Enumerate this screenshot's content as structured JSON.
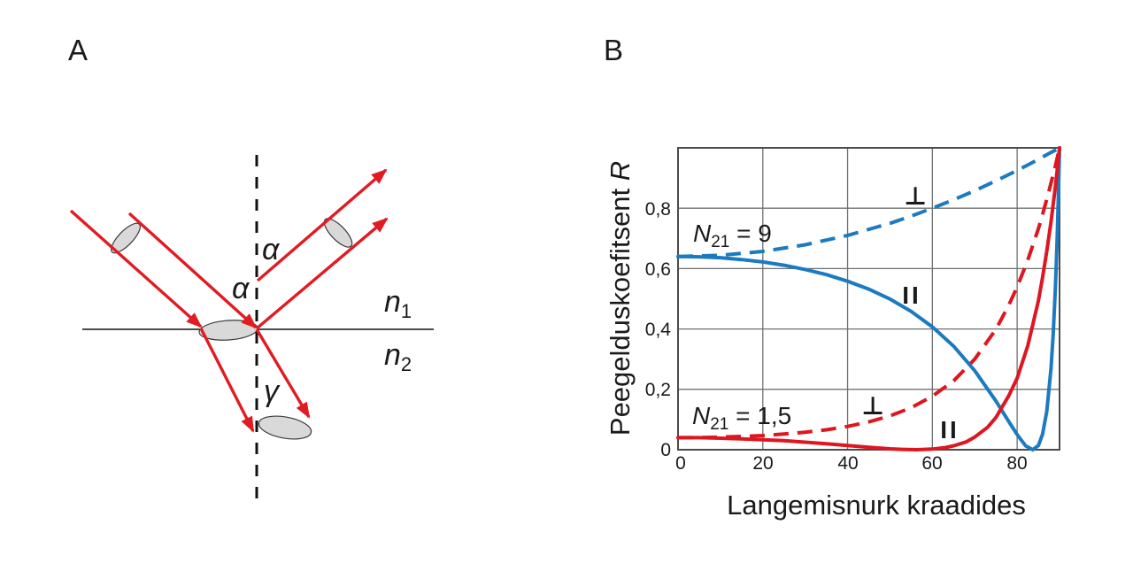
{
  "figure": {
    "background": "#ffffff",
    "ray_color": "#e11b22",
    "line_color": "#111111",
    "ellipse_fill": "#d9d9d9",
    "ellipse_stroke": "#3a3a3a",
    "grid_color": "#707070",
    "frame_color": "#4b4b4b"
  },
  "panel_a": {
    "label": "A",
    "angle_incidence": "α",
    "angle_reflection": "α",
    "angle_refraction": "γ",
    "medium1": {
      "base": "n",
      "sub": "1"
    },
    "medium2": {
      "base": "n",
      "sub": "2"
    }
  },
  "panel_b": {
    "label": "B",
    "annotation_n9": {
      "base": "N",
      "sub": "21",
      "rest": " = 9"
    },
    "annotation_n15": {
      "base": "N",
      "sub": "21",
      "rest": " = 1,5"
    },
    "perp_blue": "⊥",
    "par_blue": "II",
    "perp_red": "⊥",
    "par_red": "II"
  },
  "chart_data": {
    "type": "line",
    "title": "",
    "xlabel": "Langemisnurk kraadides",
    "ylabel": "Peegelduskoefitsent R",
    "ylabel_main": "Peegelduskoefitsent ",
    "ylabel_var": "R",
    "xlim": [
      0,
      90
    ],
    "ylim": [
      0,
      1
    ],
    "grid": true,
    "legend_position": "inline-annotations",
    "x_tick_labels": [
      "0",
      "20",
      "40",
      "60",
      "80"
    ],
    "y_tick_labels": [
      "0",
      "0,2",
      "0,4",
      "0,6",
      "0,8"
    ],
    "x_ticks": [
      0,
      20,
      40,
      60,
      80
    ],
    "y_ticks": [
      0,
      0.2,
      0.4,
      0.6,
      0.8
    ],
    "x_gridlines": [
      20,
      40,
      60,
      80
    ],
    "y_gridlines": [
      0.2,
      0.4,
      0.6,
      0.8
    ],
    "series": [
      {
        "id": "n9-perp",
        "name": "N21 = 9, perpendicular polarization (⊥)",
        "color": "#1b7ac0",
        "dashed": true,
        "points": [
          [
            0,
            0.64
          ],
          [
            10,
            0.644
          ],
          [
            20,
            0.657
          ],
          [
            30,
            0.679
          ],
          [
            40,
            0.71
          ],
          [
            50,
            0.75
          ],
          [
            55,
            0.774
          ],
          [
            60,
            0.8
          ],
          [
            65,
            0.828
          ],
          [
            70,
            0.858
          ],
          [
            75,
            0.891
          ],
          [
            80,
            0.925
          ],
          [
            83,
            0.947
          ],
          [
            85,
            0.962
          ],
          [
            87,
            0.977
          ],
          [
            88,
            0.985
          ],
          [
            89,
            0.992
          ],
          [
            90,
            1.0
          ]
        ]
      },
      {
        "id": "n9-par",
        "name": "N21 = 9, parallel polarization (∥)",
        "color": "#1b7ac0",
        "dashed": false,
        "points": [
          [
            0,
            0.64
          ],
          [
            5,
            0.639
          ],
          [
            10,
            0.636
          ],
          [
            15,
            0.63
          ],
          [
            20,
            0.622
          ],
          [
            25,
            0.611
          ],
          [
            30,
            0.597
          ],
          [
            35,
            0.58
          ],
          [
            40,
            0.558
          ],
          [
            45,
            0.532
          ],
          [
            50,
            0.499
          ],
          [
            55,
            0.458
          ],
          [
            60,
            0.407
          ],
          [
            65,
            0.343
          ],
          [
            70,
            0.262
          ],
          [
            75,
            0.161
          ],
          [
            78,
            0.094
          ],
          [
            80,
            0.05
          ],
          [
            82,
            0.013
          ],
          [
            83.7,
            0.0
          ],
          [
            85,
            0.014
          ],
          [
            86,
            0.051
          ],
          [
            87,
            0.127
          ],
          [
            88,
            0.27
          ],
          [
            88.5,
            0.38
          ],
          [
            89,
            0.529
          ],
          [
            89.25,
            0.621
          ],
          [
            89.5,
            0.728
          ],
          [
            89.75,
            0.854
          ],
          [
            90,
            1.0
          ]
        ]
      },
      {
        "id": "n15-perp",
        "name": "N21 = 1,5, perpendicular polarization (⊥)",
        "color": "#dd1620",
        "dashed": true,
        "points": [
          [
            0,
            0.04
          ],
          [
            5,
            0.04
          ],
          [
            10,
            0.042
          ],
          [
            15,
            0.044
          ],
          [
            20,
            0.047
          ],
          [
            25,
            0.052
          ],
          [
            30,
            0.058
          ],
          [
            35,
            0.066
          ],
          [
            40,
            0.077
          ],
          [
            45,
            0.092
          ],
          [
            50,
            0.112
          ],
          [
            55,
            0.139
          ],
          [
            60,
            0.177
          ],
          [
            65,
            0.228
          ],
          [
            70,
            0.3
          ],
          [
            75,
            0.399
          ],
          [
            78,
            0.478
          ],
          [
            80,
            0.539
          ],
          [
            82.5,
            0.628
          ],
          [
            85,
            0.732
          ],
          [
            86,
            0.779
          ],
          [
            87.5,
            0.856
          ],
          [
            89,
            0.939
          ],
          [
            90,
            1.0
          ]
        ]
      },
      {
        "id": "n15-par",
        "name": "N21 = 1,5, parallel polarization (∥)",
        "color": "#dd1620",
        "dashed": false,
        "points": [
          [
            0,
            0.04
          ],
          [
            5,
            0.04
          ],
          [
            10,
            0.038
          ],
          [
            15,
            0.036
          ],
          [
            20,
            0.033
          ],
          [
            25,
            0.03
          ],
          [
            30,
            0.025
          ],
          [
            35,
            0.02
          ],
          [
            40,
            0.014
          ],
          [
            45,
            0.008
          ],
          [
            50,
            0.003
          ],
          [
            53,
            0.0013
          ],
          [
            56.3,
            0.0
          ],
          [
            60,
            0.002
          ],
          [
            63,
            0.007
          ],
          [
            65,
            0.013
          ],
          [
            68,
            0.026
          ],
          [
            70,
            0.042
          ],
          [
            73,
            0.074
          ],
          [
            75,
            0.107
          ],
          [
            78,
            0.178
          ],
          [
            80,
            0.237
          ],
          [
            82.5,
            0.344
          ],
          [
            85,
            0.493
          ],
          [
            86,
            0.57
          ],
          [
            87,
            0.658
          ],
          [
            88,
            0.755
          ],
          [
            89,
            0.869
          ],
          [
            89.5,
            0.932
          ],
          [
            90,
            1.0
          ]
        ]
      }
    ]
  }
}
